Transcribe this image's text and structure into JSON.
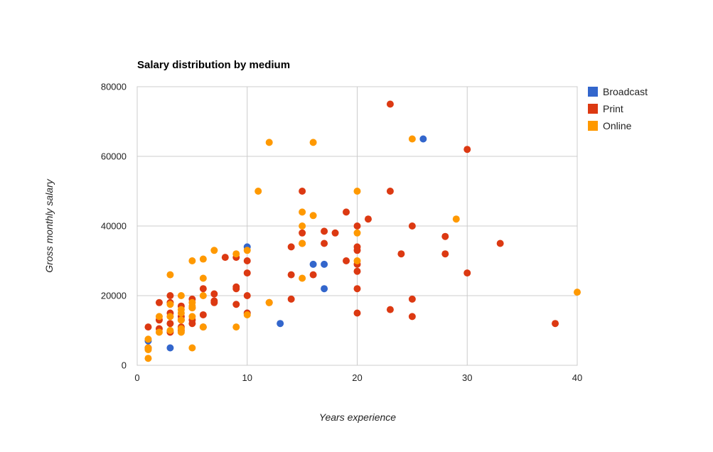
{
  "chart_data": {
    "type": "scatter",
    "title": "Salary distribution by medium",
    "xlabel": "Years experience",
    "ylabel": "Gross monthly salary",
    "xlim": [
      0,
      40
    ],
    "ylim": [
      0,
      80000
    ],
    "x_ticks": [
      "0",
      "10",
      "20",
      "30",
      "40"
    ],
    "y_ticks": [
      "0",
      "20000",
      "40000",
      "60000",
      "80000"
    ],
    "grid": true,
    "legend_position": "right",
    "series": [
      {
        "name": "Broadcast",
        "color": "#3366cc",
        "points": [
          [
            1,
            5000
          ],
          [
            1,
            7000
          ],
          [
            3,
            5000
          ],
          [
            10,
            34000
          ],
          [
            10,
            15000
          ],
          [
            13,
            12000
          ],
          [
            16,
            29000
          ],
          [
            17,
            29000
          ],
          [
            17,
            22000
          ],
          [
            26,
            65000
          ]
        ]
      },
      {
        "name": "Print",
        "color": "#dc3912",
        "points": [
          [
            1,
            11000
          ],
          [
            1,
            5000
          ],
          [
            2,
            18000
          ],
          [
            2,
            13000
          ],
          [
            2,
            10500
          ],
          [
            3,
            20000
          ],
          [
            3,
            18000
          ],
          [
            3,
            15000
          ],
          [
            3,
            12000
          ],
          [
            3,
            9500
          ],
          [
            4,
            17000
          ],
          [
            4,
            14000
          ],
          [
            4,
            13000
          ],
          [
            4,
            11000
          ],
          [
            4,
            10000
          ],
          [
            5,
            19000
          ],
          [
            5,
            16500
          ],
          [
            5,
            13000
          ],
          [
            5,
            12000
          ],
          [
            6,
            22000
          ],
          [
            6,
            14500
          ],
          [
            6,
            11000
          ],
          [
            7,
            20500
          ],
          [
            7,
            18500
          ],
          [
            7,
            18000
          ],
          [
            8,
            31000
          ],
          [
            9,
            31000
          ],
          [
            9,
            22000
          ],
          [
            9,
            22500
          ],
          [
            9,
            17500
          ],
          [
            10,
            30000
          ],
          [
            10,
            26500
          ],
          [
            10,
            20000
          ],
          [
            10,
            15000
          ],
          [
            12,
            18000
          ],
          [
            14,
            34000
          ],
          [
            14,
            26000
          ],
          [
            14,
            19000
          ],
          [
            15,
            50000
          ],
          [
            15,
            38000
          ],
          [
            15,
            35000
          ],
          [
            16,
            26000
          ],
          [
            17,
            38500
          ],
          [
            17,
            35000
          ],
          [
            18,
            38000
          ],
          [
            19,
            44000
          ],
          [
            19,
            30000
          ],
          [
            20,
            40000
          ],
          [
            20,
            34000
          ],
          [
            20,
            33000
          ],
          [
            20,
            29000
          ],
          [
            20,
            27000
          ],
          [
            20,
            22000
          ],
          [
            20,
            15000
          ],
          [
            21,
            42000
          ],
          [
            23,
            75000
          ],
          [
            23,
            50000
          ],
          [
            23,
            16000
          ],
          [
            24,
            32000
          ],
          [
            25,
            40000
          ],
          [
            25,
            19000
          ],
          [
            25,
            14000
          ],
          [
            28,
            37000
          ],
          [
            28,
            32000
          ],
          [
            30,
            62000
          ],
          [
            30,
            26500
          ],
          [
            33,
            35000
          ],
          [
            38,
            12000
          ]
        ]
      },
      {
        "name": "Online",
        "color": "#ff9900",
        "points": [
          [
            1,
            7500
          ],
          [
            1,
            5000
          ],
          [
            1,
            4500
          ],
          [
            1,
            2000
          ],
          [
            2,
            14000
          ],
          [
            2,
            9500
          ],
          [
            3,
            26000
          ],
          [
            3,
            17500
          ],
          [
            3,
            14000
          ],
          [
            3,
            10000
          ],
          [
            4,
            20000
          ],
          [
            4,
            16000
          ],
          [
            4,
            15000
          ],
          [
            4,
            13000
          ],
          [
            4,
            10500
          ],
          [
            4,
            9500
          ],
          [
            5,
            30000
          ],
          [
            5,
            18000
          ],
          [
            5,
            17000
          ],
          [
            5,
            16500
          ],
          [
            5,
            14000
          ],
          [
            5,
            5000
          ],
          [
            6,
            30500
          ],
          [
            6,
            25000
          ],
          [
            6,
            20000
          ],
          [
            6,
            11000
          ],
          [
            7,
            33000
          ],
          [
            9,
            32000
          ],
          [
            9,
            11000
          ],
          [
            10,
            33000
          ],
          [
            10,
            14500
          ],
          [
            11,
            50000
          ],
          [
            12,
            64000
          ],
          [
            12,
            18000
          ],
          [
            15,
            44000
          ],
          [
            15,
            40000
          ],
          [
            15,
            35000
          ],
          [
            15,
            25000
          ],
          [
            16,
            64000
          ],
          [
            16,
            43000
          ],
          [
            20,
            50000
          ],
          [
            20,
            38000
          ],
          [
            20,
            30000
          ],
          [
            25,
            65000
          ],
          [
            29,
            42000
          ],
          [
            40,
            21000
          ]
        ]
      }
    ]
  }
}
